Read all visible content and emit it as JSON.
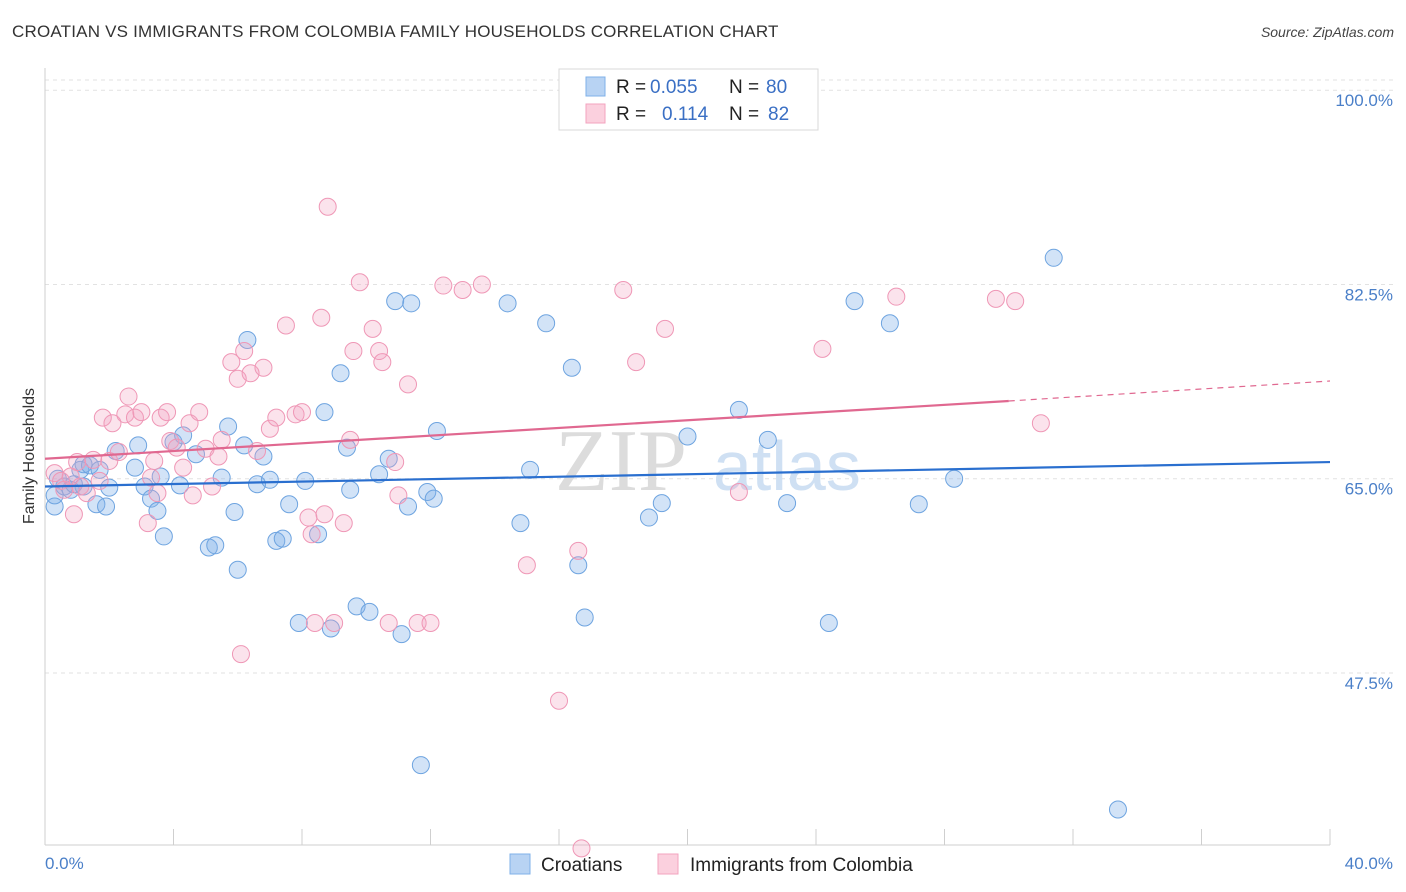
{
  "title": "CROATIAN VS IMMIGRANTS FROM COLOMBIA FAMILY HOUSEHOLDS CORRELATION CHART",
  "source": "Source: ZipAtlas.com",
  "watermark": {
    "zip": "ZIP",
    "atlas": "atlas"
  },
  "chart_data": {
    "type": "scatter",
    "ylabel": "Family Households",
    "xlabel": "",
    "xlim": [
      0,
      40
    ],
    "ylim": [
      32,
      102
    ],
    "x_tick_labels": [
      "0.0%",
      "40.0%"
    ],
    "y_ticks": [
      47.5,
      65.0,
      82.5,
      100.0
    ],
    "y_tick_labels": [
      "47.5%",
      "65.0%",
      "82.5%",
      "100.0%"
    ],
    "legend": [
      {
        "name": "Croatians",
        "r_label": "R =",
        "r": "0.055",
        "n_label": "N =",
        "n": "80",
        "color": "#7fb0e8",
        "line": "#2a6fcf"
      },
      {
        "name": "Immigrants from Colombia",
        "r_label": "R =",
        "r": "0.114",
        "n_label": "N =",
        "n": "82",
        "color": "#f3a3bf",
        "line": "#e06890"
      }
    ],
    "series": [
      {
        "name": "Croatians",
        "trend": {
          "x0": 0,
          "y0": 64.3,
          "x1": 40,
          "y1": 66.5
        },
        "points": [
          [
            0.3,
            62.5
          ],
          [
            0.3,
            63.5
          ],
          [
            0.4,
            65.0
          ],
          [
            0.6,
            64.3
          ],
          [
            0.8,
            64.0
          ],
          [
            0.9,
            64.5
          ],
          [
            1.1,
            65.8
          ],
          [
            1.2,
            66.3
          ],
          [
            1.2,
            64.3
          ],
          [
            1.4,
            66.2
          ],
          [
            1.6,
            62.7
          ],
          [
            1.7,
            65.8
          ],
          [
            1.9,
            62.5
          ],
          [
            2.0,
            64.2
          ],
          [
            2.2,
            67.5
          ],
          [
            2.8,
            66.0
          ],
          [
            2.9,
            68.0
          ],
          [
            3.1,
            64.3
          ],
          [
            3.3,
            63.2
          ],
          [
            3.5,
            62.1
          ],
          [
            3.6,
            65.2
          ],
          [
            3.7,
            59.8
          ],
          [
            4.0,
            68.3
          ],
          [
            4.2,
            64.4
          ],
          [
            4.3,
            68.9
          ],
          [
            4.7,
            67.2
          ],
          [
            5.1,
            58.8
          ],
          [
            5.3,
            59.0
          ],
          [
            5.5,
            65.1
          ],
          [
            5.7,
            69.7
          ],
          [
            5.9,
            62.0
          ],
          [
            6.0,
            56.8
          ],
          [
            6.2,
            68.0
          ],
          [
            6.3,
            77.5
          ],
          [
            6.6,
            64.5
          ],
          [
            6.8,
            67.0
          ],
          [
            7.0,
            64.9
          ],
          [
            7.2,
            59.4
          ],
          [
            7.4,
            59.6
          ],
          [
            7.6,
            62.7
          ],
          [
            7.9,
            52.0
          ],
          [
            8.1,
            64.8
          ],
          [
            8.5,
            60.0
          ],
          [
            8.7,
            71.0
          ],
          [
            8.9,
            51.5
          ],
          [
            9.2,
            74.5
          ],
          [
            9.4,
            67.8
          ],
          [
            9.5,
            64.0
          ],
          [
            9.7,
            53.5
          ],
          [
            10.1,
            53.0
          ],
          [
            10.4,
            65.4
          ],
          [
            10.7,
            66.8
          ],
          [
            10.9,
            81.0
          ],
          [
            11.1,
            51.0
          ],
          [
            11.3,
            62.5
          ],
          [
            11.4,
            80.8
          ],
          [
            11.7,
            39.2
          ],
          [
            11.9,
            63.8
          ],
          [
            12.1,
            63.2
          ],
          [
            12.2,
            69.3
          ],
          [
            14.4,
            80.8
          ],
          [
            14.8,
            61.0
          ],
          [
            15.1,
            65.8
          ],
          [
            15.6,
            79.0
          ],
          [
            16.4,
            75.0
          ],
          [
            16.6,
            57.2
          ],
          [
            16.8,
            52.5
          ],
          [
            18.8,
            61.5
          ],
          [
            19.2,
            62.8
          ],
          [
            20.0,
            68.8
          ],
          [
            21.6,
            71.2
          ],
          [
            22.5,
            68.5
          ],
          [
            23.1,
            62.8
          ],
          [
            24.4,
            52.0
          ],
          [
            25.2,
            81.0
          ],
          [
            26.3,
            79.0
          ],
          [
            27.2,
            62.7
          ],
          [
            28.3,
            65.0
          ],
          [
            31.4,
            84.9
          ],
          [
            33.4,
            35.2
          ]
        ]
      },
      {
        "name": "Immigrants from Colombia",
        "trend": {
          "x0": 0,
          "y0": 66.8,
          "x1": 30,
          "y1": 72.0,
          "x_ext": 40,
          "y_ext": 73.8
        },
        "points": [
          [
            0.3,
            65.5
          ],
          [
            0.5,
            64.8
          ],
          [
            0.6,
            64.0
          ],
          [
            0.8,
            65.2
          ],
          [
            0.9,
            61.8
          ],
          [
            1.0,
            66.5
          ],
          [
            1.1,
            64.3
          ],
          [
            1.3,
            63.7
          ],
          [
            1.5,
            66.7
          ],
          [
            1.8,
            70.5
          ],
          [
            2.0,
            66.6
          ],
          [
            2.1,
            70.0
          ],
          [
            2.3,
            67.4
          ],
          [
            2.5,
            70.8
          ],
          [
            2.6,
            72.4
          ],
          [
            2.8,
            70.5
          ],
          [
            3.0,
            71.0
          ],
          [
            3.2,
            61.0
          ],
          [
            3.3,
            65.1
          ],
          [
            3.4,
            66.6
          ],
          [
            3.5,
            63.7
          ],
          [
            3.6,
            70.5
          ],
          [
            3.8,
            71.0
          ],
          [
            3.9,
            68.4
          ],
          [
            4.1,
            67.8
          ],
          [
            4.3,
            66.0
          ],
          [
            4.5,
            70.0
          ],
          [
            4.6,
            63.5
          ],
          [
            4.8,
            71.0
          ],
          [
            5.0,
            67.7
          ],
          [
            5.2,
            64.3
          ],
          [
            5.4,
            67.0
          ],
          [
            5.5,
            68.5
          ],
          [
            5.8,
            75.5
          ],
          [
            6.0,
            74.0
          ],
          [
            6.1,
            49.2
          ],
          [
            6.2,
            76.5
          ],
          [
            6.4,
            74.5
          ],
          [
            6.6,
            67.5
          ],
          [
            6.8,
            75.0
          ],
          [
            7.0,
            69.5
          ],
          [
            7.2,
            70.5
          ],
          [
            7.5,
            78.8
          ],
          [
            7.8,
            70.8
          ],
          [
            8.0,
            71.0
          ],
          [
            8.2,
            61.5
          ],
          [
            8.3,
            60.0
          ],
          [
            8.4,
            52.0
          ],
          [
            8.6,
            79.5
          ],
          [
            8.7,
            61.8
          ],
          [
            8.8,
            89.5
          ],
          [
            9.0,
            52.0
          ],
          [
            9.3,
            61.0
          ],
          [
            9.5,
            68.5
          ],
          [
            9.6,
            76.5
          ],
          [
            9.8,
            82.7
          ],
          [
            10.2,
            78.5
          ],
          [
            10.4,
            76.5
          ],
          [
            10.5,
            75.5
          ],
          [
            10.7,
            52.0
          ],
          [
            10.9,
            66.5
          ],
          [
            11.0,
            63.5
          ],
          [
            11.3,
            73.5
          ],
          [
            11.6,
            52.0
          ],
          [
            12.0,
            52.0
          ],
          [
            12.4,
            82.4
          ],
          [
            13.0,
            82.0
          ],
          [
            13.6,
            82.5
          ],
          [
            15.0,
            57.2
          ],
          [
            16.0,
            45.0
          ],
          [
            16.6,
            58.5
          ],
          [
            16.7,
            31.7
          ],
          [
            18.0,
            82.0
          ],
          [
            18.4,
            75.5
          ],
          [
            19.3,
            78.5
          ],
          [
            21.6,
            63.8
          ],
          [
            24.2,
            76.7
          ],
          [
            26.5,
            81.4
          ],
          [
            29.6,
            81.2
          ],
          [
            30.2,
            81.0
          ],
          [
            31.0,
            70.0
          ],
          [
            1.7,
            64.8
          ]
        ]
      }
    ]
  }
}
